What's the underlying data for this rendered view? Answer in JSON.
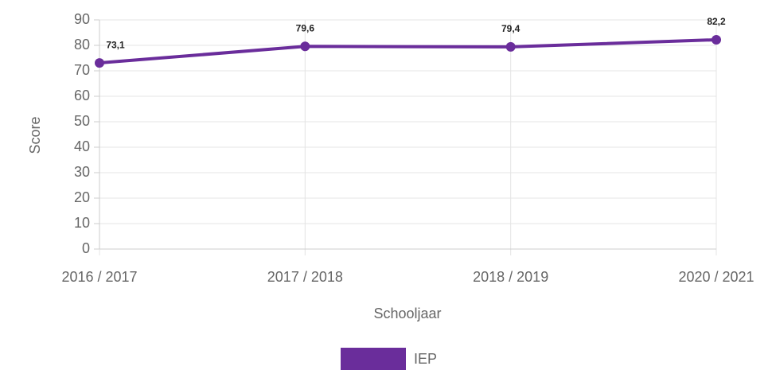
{
  "chart_data": {
    "type": "line",
    "categories": [
      "2016 / 2017",
      "2017 / 2018",
      "2018 / 2019",
      "2020 / 2021"
    ],
    "series": [
      {
        "name": "IEP",
        "color": "#6a2d9b",
        "values": [
          73.1,
          79.6,
          79.4,
          82.2
        ],
        "value_labels": [
          "73,1",
          "79,6",
          "79,4",
          "82,2"
        ]
      }
    ],
    "xlabel": "Schooljaar",
    "ylabel": "Score",
    "ylim": [
      0,
      90
    ],
    "yticks": [
      0,
      10,
      20,
      30,
      40,
      50,
      60,
      70,
      80,
      90
    ],
    "grid": true,
    "legend": "bottom"
  }
}
